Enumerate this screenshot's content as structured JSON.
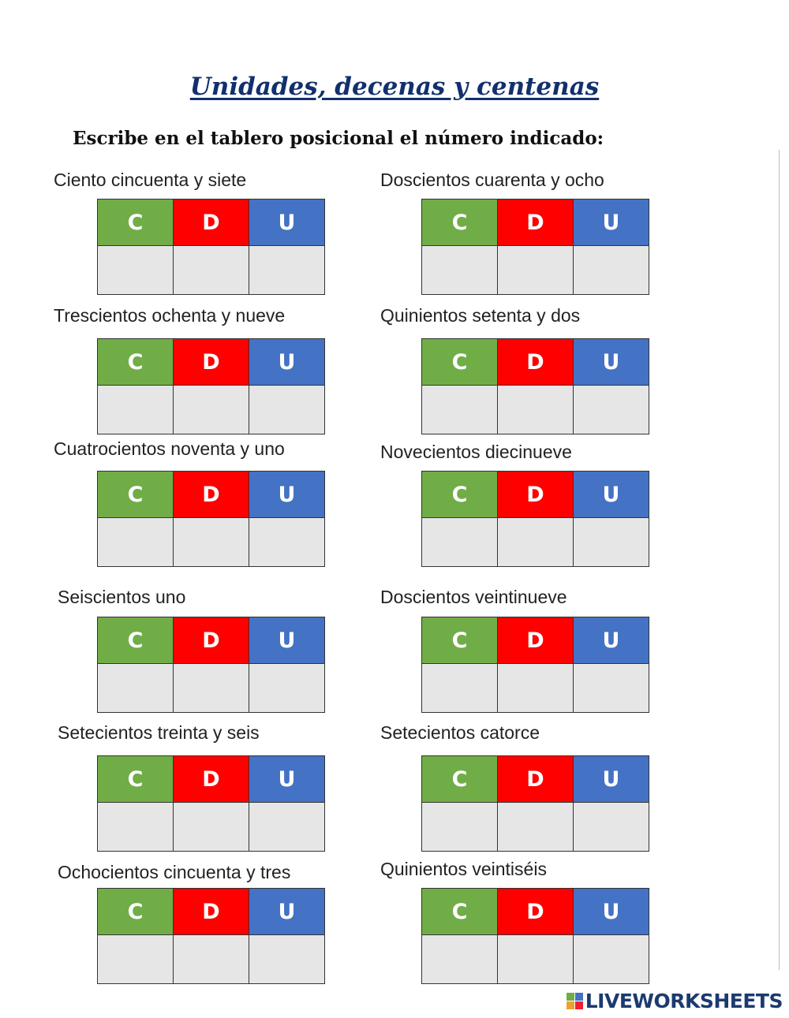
{
  "header": {
    "title": "Unidades, decenas y centenas",
    "instruction": "Escribe en el tablero posicional el número indicado:"
  },
  "columns": [
    "C",
    "D",
    "U"
  ],
  "exercises": [
    {
      "label": "Ciento cincuenta y siete"
    },
    {
      "label": "Doscientos cuarenta y ocho"
    },
    {
      "label": "Trescientos ochenta y nueve"
    },
    {
      "label": "Quinientos setenta y dos"
    },
    {
      "label": "Cuatrocientos noventa y uno"
    },
    {
      "label": "Novecientos diecinueve"
    },
    {
      "label": "Seiscientos uno"
    },
    {
      "label": "Doscientos veintinueve"
    },
    {
      "label": "Setecientos treinta y seis"
    },
    {
      "label": "Setecientos catorce"
    },
    {
      "label": "Ochocientos cincuenta y tres"
    },
    {
      "label": "Quinientos veintiséis"
    }
  ],
  "footer": {
    "logo": "LIVEWORKSHEETS"
  }
}
